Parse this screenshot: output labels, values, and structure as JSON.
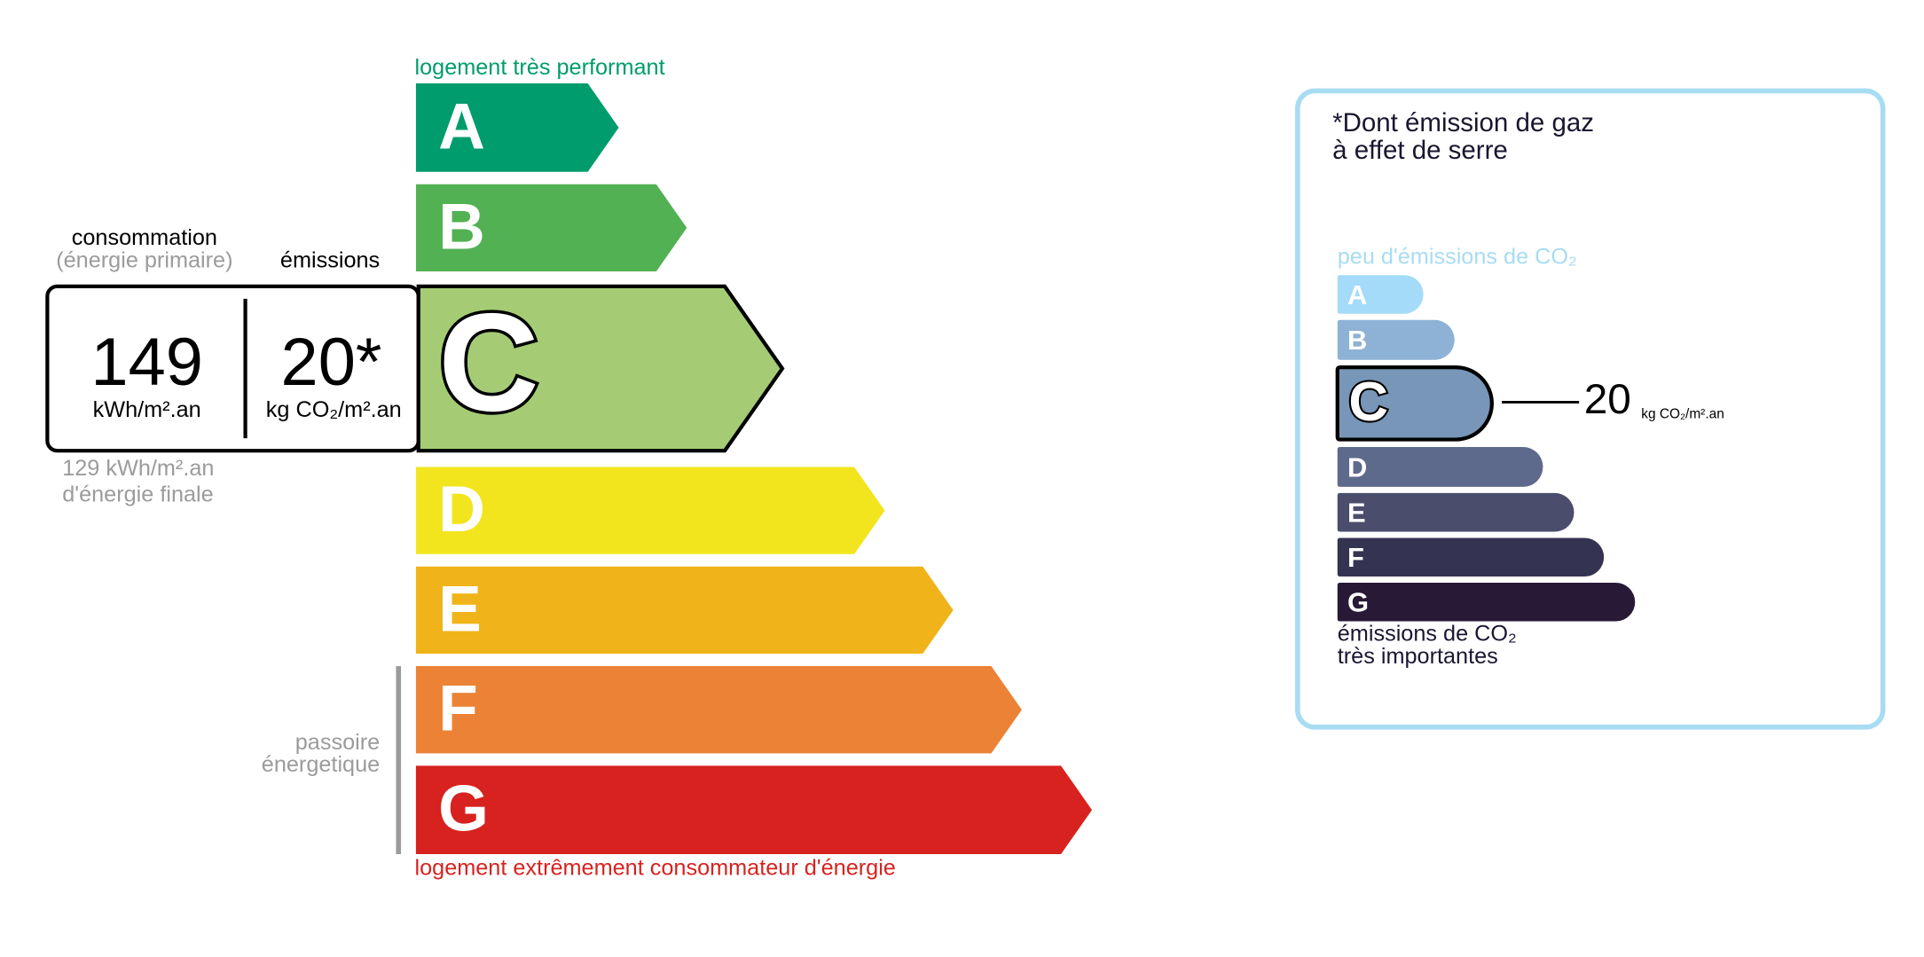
{
  "energy": {
    "top_label": "logement très performant",
    "bottom_label": "logement extrêmement consommateur d'énergie",
    "classes": [
      "A",
      "B",
      "C",
      "D",
      "E",
      "F",
      "G"
    ],
    "colors": [
      "#009c6d",
      "#52b153",
      "#a5cc74",
      "#f2e51e",
      "#f0b41a",
      "#eb8235",
      "#d7221f"
    ],
    "current_class": "C",
    "consumption_title": "consommation",
    "consumption_subtitle": "(énergie primaire)",
    "emissions_title": "émissions",
    "consumption_value": "149",
    "consumption_unit": "kWh/m².an",
    "emissions_value": "20*",
    "emissions_unit": "kg CO₂/m².an",
    "final_energy": "129 kWh/m².an",
    "final_energy_caption": "d'énergie finale",
    "sieve_line1": "passoire",
    "sieve_line2": "énergetique"
  },
  "ghg": {
    "title_line1": "*Dont émission de gaz",
    "title_line2": "à effet de serre",
    "top_label": "peu d'émissions de CO₂",
    "classes": [
      "A",
      "B",
      "C",
      "D",
      "E",
      "F",
      "G"
    ],
    "colors": [
      "#a4dbf8",
      "#8db2d6",
      "#7896b7",
      "#5e6a8b",
      "#4b4d6d",
      "#353352",
      "#281a37"
    ],
    "current_class": "C",
    "value": "20",
    "unit": "kg CO₂/m².an",
    "bottom_line1": "émissions de CO₂",
    "bottom_line2": "très importantes"
  }
}
